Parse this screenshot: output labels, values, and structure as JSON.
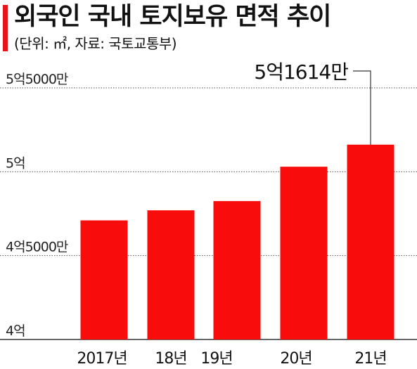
{
  "header": {
    "title": "외국인 국내 토지보유 면적 추이",
    "subtitle": "(단위: ㎡, 자료: 국토교통부)"
  },
  "chart_data": {
    "type": "bar",
    "title": "외국인 국내 토지보유 면적 추이",
    "subtitle": "(단위: ㎡, 자료: 국토교통부)",
    "categories": [
      "2017년",
      "18년",
      "19년",
      "20년",
      "21년"
    ],
    "values": [
      471000000,
      477000000,
      482500000,
      503000000,
      516140000
    ],
    "ylim": [
      400000000,
      560000000
    ],
    "yticks": [
      {
        "value": 400000000,
        "label": "4억"
      },
      {
        "value": 450000000,
        "label": "4억5000만"
      },
      {
        "value": 500000000,
        "label": "5억"
      },
      {
        "value": 550000000,
        "label": "5억5000만"
      }
    ],
    "annotation": {
      "category": "21년",
      "label": "5억1614만"
    },
    "grid": true,
    "colors": {
      "bar": "#f80c0c",
      "accent": "#e8141b",
      "grid": "#555555"
    }
  }
}
